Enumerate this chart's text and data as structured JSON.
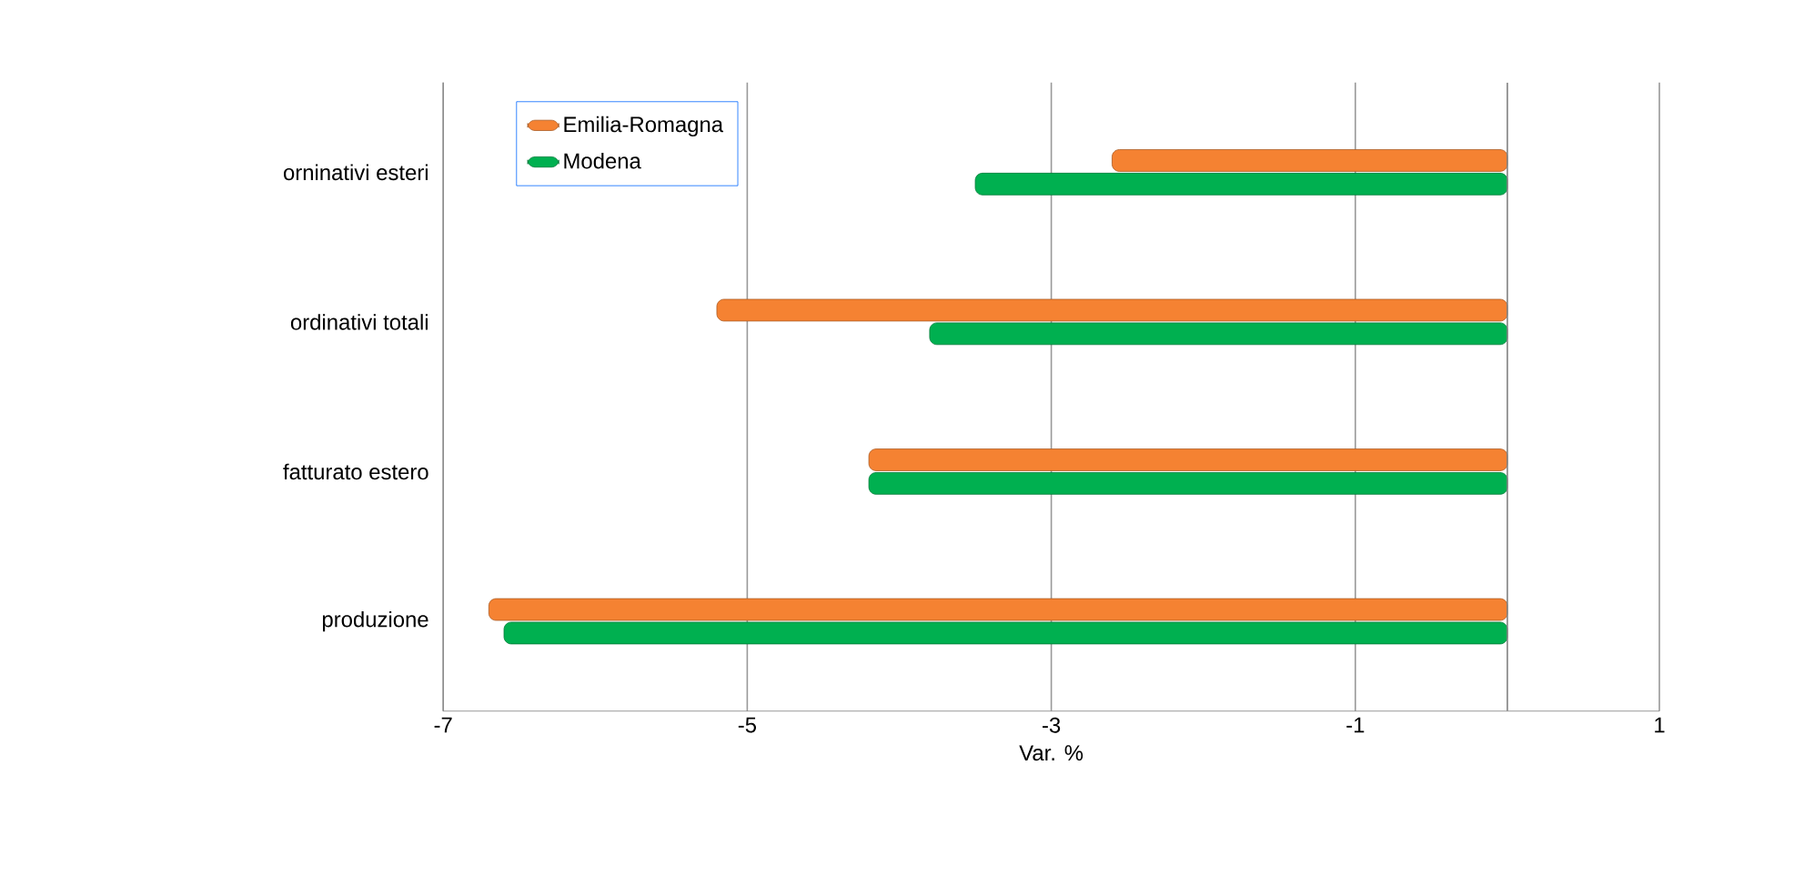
{
  "chart_data": {
    "type": "bar",
    "orientation": "horizontal",
    "xlabel": "Var. %",
    "categories": [
      "orninativi esteri",
      "ordinativi totali",
      "fatturato estero",
      "produzione"
    ],
    "series": [
      {
        "name": "Emilia-Romagna",
        "color": "#f58232",
        "values": [
          -2.6,
          -5.2,
          -4.2,
          -6.7
        ]
      },
      {
        "name": "Modena",
        "color": "#00b050",
        "values": [
          -3.5,
          -3.8,
          -4.2,
          -6.6
        ]
      }
    ],
    "xlim": [
      -7,
      1
    ],
    "xticks": [
      -7,
      -5,
      -3,
      -1,
      1
    ],
    "grid": "x",
    "legend": "top left"
  }
}
